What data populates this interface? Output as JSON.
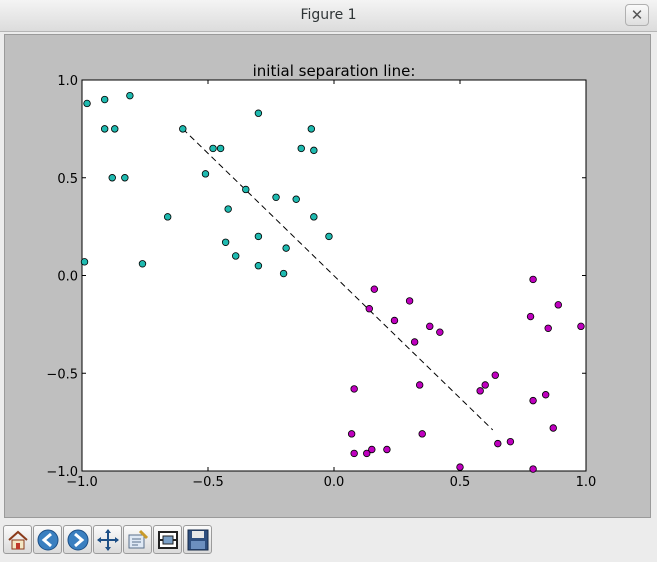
{
  "window": {
    "title": "Figure 1",
    "close_glyph": "✕"
  },
  "toolbar": {
    "buttons": [
      {
        "name": "home-button",
        "icon": "home-icon"
      },
      {
        "name": "back-button",
        "icon": "back-arrow-icon"
      },
      {
        "name": "forward-button",
        "icon": "forward-arrow-icon"
      },
      {
        "name": "pan-button",
        "icon": "pan-arrows-icon"
      },
      {
        "name": "zoom-button",
        "icon": "zoom-rect-icon"
      },
      {
        "name": "subplots-button",
        "icon": "subplots-config-icon"
      },
      {
        "name": "save-button",
        "icon": "floppy-disk-icon"
      }
    ]
  },
  "colors": {
    "series_a": "#1fbab0",
    "series_b": "#bf00bf",
    "line": "#000000",
    "canvas_bg": "#bfbfbf",
    "plot_bg": "#ffffff"
  },
  "chart_data": {
    "type": "scatter",
    "title": "initial separation line:",
    "xlabel": "",
    "ylabel": "",
    "xlim": [
      -1.0,
      1.0
    ],
    "ylim": [
      -1.0,
      1.0
    ],
    "xticks": [
      "−1.0",
      "−0.5",
      "0.0",
      "0.5",
      "1.0"
    ],
    "xtick_values": [
      -1.0,
      -0.5,
      0.0,
      0.5,
      1.0
    ],
    "yticks": [
      "1.0",
      "0.5",
      "0.0",
      "−0.5",
      "−1.0"
    ],
    "ytick_values": [
      1.0,
      0.5,
      0.0,
      -0.5,
      -1.0
    ],
    "grid": false,
    "series": [
      {
        "color": "#1fbab0",
        "points": [
          [
            -0.99,
            0.07
          ],
          [
            -0.98,
            0.88
          ],
          [
            -0.91,
            0.9
          ],
          [
            -0.91,
            0.75
          ],
          [
            -0.87,
            0.75
          ],
          [
            -0.88,
            0.5
          ],
          [
            -0.83,
            0.5
          ],
          [
            -0.81,
            0.92
          ],
          [
            -0.76,
            0.06
          ],
          [
            -0.66,
            0.3
          ],
          [
            -0.6,
            0.75
          ],
          [
            -0.51,
            0.52
          ],
          [
            -0.48,
            0.65
          ],
          [
            -0.45,
            0.65
          ],
          [
            -0.43,
            0.17
          ],
          [
            -0.42,
            0.34
          ],
          [
            -0.39,
            0.1
          ],
          [
            -0.35,
            0.44
          ],
          [
            -0.3,
            0.83
          ],
          [
            -0.3,
            0.2
          ],
          [
            -0.3,
            0.05
          ],
          [
            -0.23,
            0.4
          ],
          [
            -0.2,
            0.01
          ],
          [
            -0.19,
            0.14
          ],
          [
            -0.15,
            0.39
          ],
          [
            -0.13,
            0.65
          ],
          [
            -0.09,
            0.75
          ],
          [
            -0.08,
            0.64
          ],
          [
            -0.08,
            0.3
          ],
          [
            -0.02,
            0.2
          ]
        ]
      },
      {
        "color": "#bf00bf",
        "points": [
          [
            0.07,
            -0.81
          ],
          [
            0.08,
            -0.58
          ],
          [
            0.08,
            -0.91
          ],
          [
            0.13,
            -0.91
          ],
          [
            0.14,
            -0.17
          ],
          [
            0.15,
            -0.89
          ],
          [
            0.16,
            -0.07
          ],
          [
            0.21,
            -0.89
          ],
          [
            0.24,
            -0.23
          ],
          [
            0.3,
            -0.13
          ],
          [
            0.32,
            -0.34
          ],
          [
            0.34,
            -0.56
          ],
          [
            0.35,
            -0.81
          ],
          [
            0.38,
            -0.26
          ],
          [
            0.42,
            -0.29
          ],
          [
            0.5,
            -0.98
          ],
          [
            0.58,
            -0.59
          ],
          [
            0.6,
            -0.56
          ],
          [
            0.64,
            -0.51
          ],
          [
            0.65,
            -0.86
          ],
          [
            0.7,
            -0.85
          ],
          [
            0.78,
            -0.21
          ],
          [
            0.79,
            -0.02
          ],
          [
            0.79,
            -0.64
          ],
          [
            0.79,
            -0.99
          ],
          [
            0.84,
            -0.61
          ],
          [
            0.85,
            -0.27
          ],
          [
            0.87,
            -0.78
          ],
          [
            0.89,
            -0.15
          ],
          [
            0.98,
            -0.26
          ]
        ]
      }
    ],
    "line": {
      "style": "dashed",
      "x": [
        -0.6,
        0.63
      ],
      "y": [
        0.75,
        -0.79
      ]
    }
  }
}
